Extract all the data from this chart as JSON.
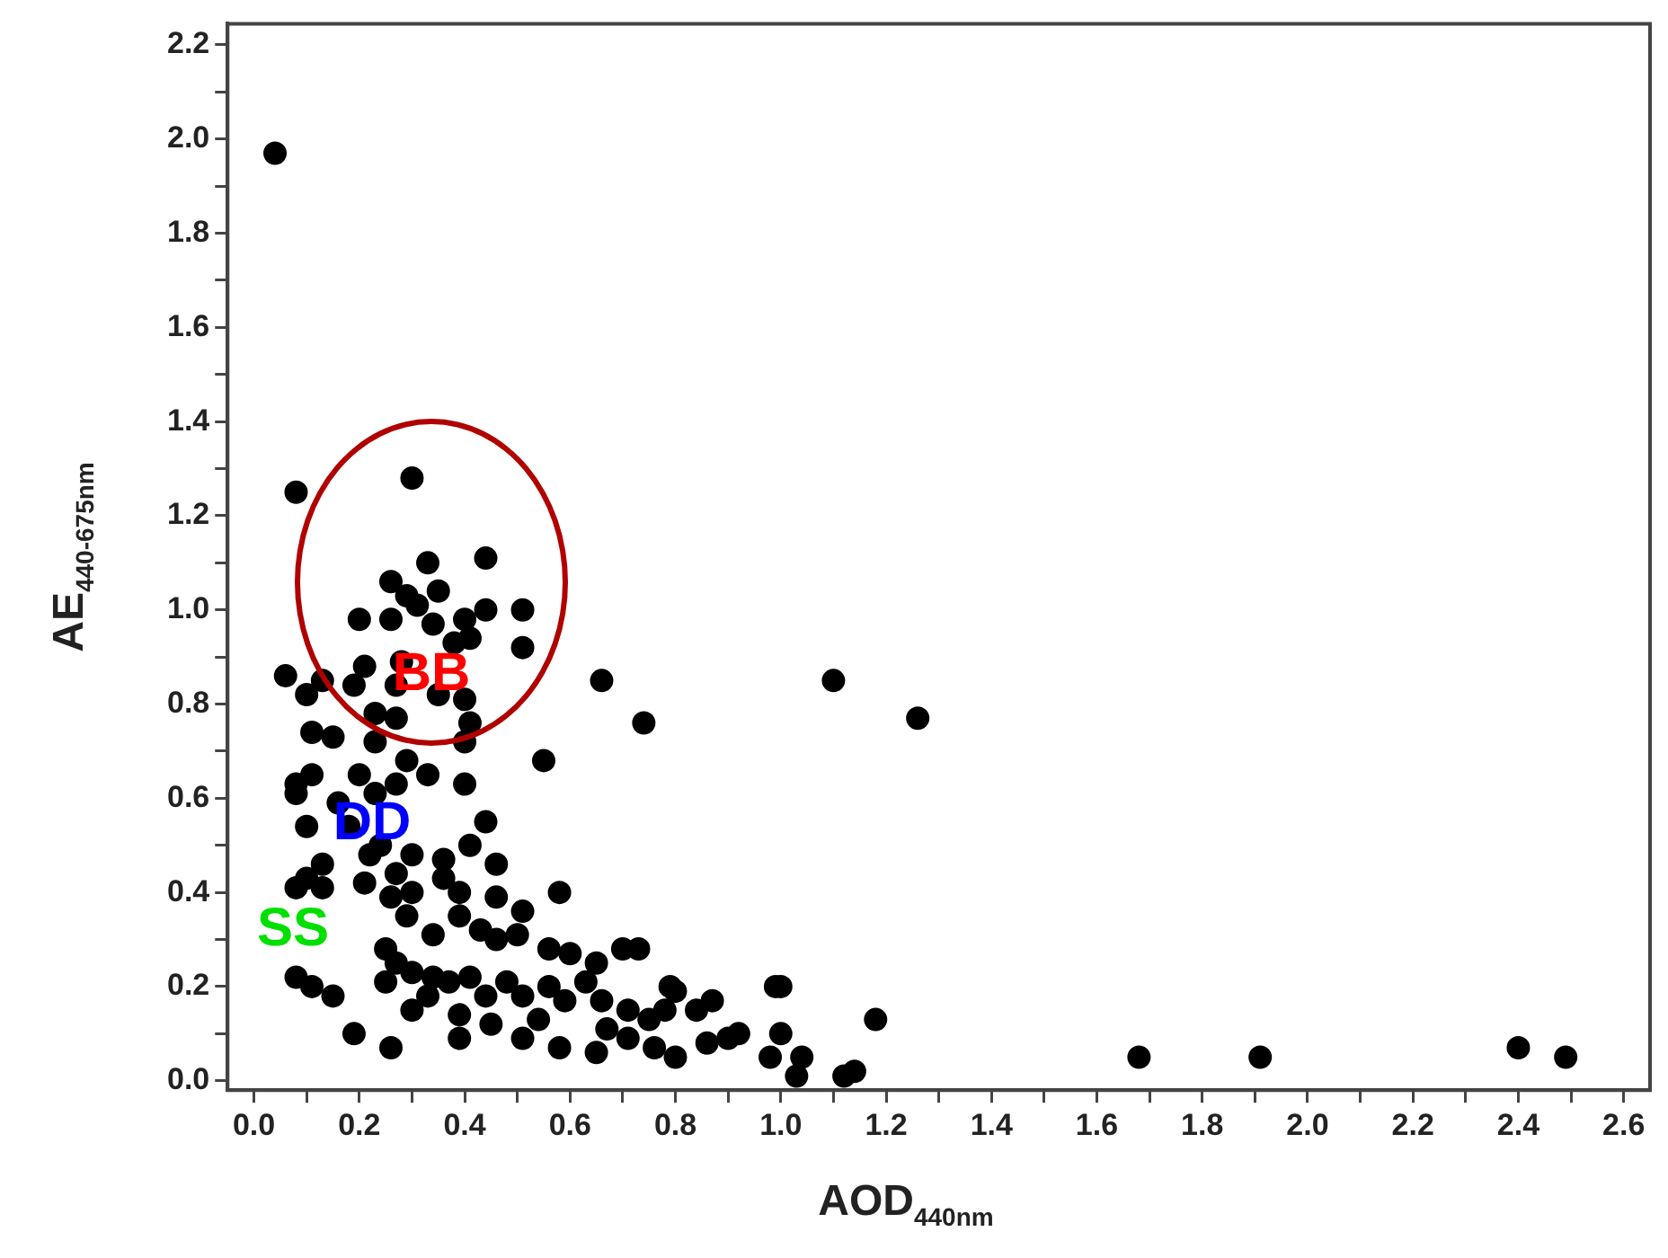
{
  "chart_data": {
    "type": "scatter",
    "xlabel": "AOD$_{440nm}$",
    "ylabel": "AE$_{440-675nm}$",
    "xlim": [
      -0.05,
      2.65
    ],
    "ylim": [
      -0.02,
      2.245
    ],
    "xticks": [
      {
        "value": 0,
        "label": "0.0"
      },
      {
        "value": 0.1,
        "label": null
      },
      {
        "value": 0.2,
        "label": "0.2"
      },
      {
        "value": 0.3,
        "label": null
      },
      {
        "value": 0.4,
        "label": "0.4"
      },
      {
        "value": 0.5,
        "label": null
      },
      {
        "value": 0.6,
        "label": "0.6"
      },
      {
        "value": 0.7,
        "label": null
      },
      {
        "value": 0.8,
        "label": "0.8"
      },
      {
        "value": 0.9,
        "label": null
      },
      {
        "value": 1,
        "label": "1.0"
      },
      {
        "value": 1.1,
        "label": null
      },
      {
        "value": 1.2,
        "label": "1.2"
      },
      {
        "value": 1.3,
        "label": null
      },
      {
        "value": 1.4,
        "label": "1.4"
      },
      {
        "value": 1.5,
        "label": null
      },
      {
        "value": 1.6,
        "label": "1.6"
      },
      {
        "value": 1.7,
        "label": null
      },
      {
        "value": 1.8,
        "label": "1.8"
      },
      {
        "value": 1.9,
        "label": null
      },
      {
        "value": 2,
        "label": "2.0"
      },
      {
        "value": 2.1,
        "label": null
      },
      {
        "value": 2.2,
        "label": "2.2"
      },
      {
        "value": 2.3,
        "label": null
      },
      {
        "value": 2.4,
        "label": "2.4"
      },
      {
        "value": 2.5,
        "label": null
      },
      {
        "value": 2.6,
        "label": "2.6"
      }
    ],
    "yticks": [
      {
        "value": 0,
        "label": "0.0"
      },
      {
        "value": 0.1,
        "label": null
      },
      {
        "value": 0.2,
        "label": "0.2"
      },
      {
        "value": 0.3,
        "label": null
      },
      {
        "value": 0.4,
        "label": "0.4"
      },
      {
        "value": 0.5,
        "label": null
      },
      {
        "value": 0.6,
        "label": "0.6"
      },
      {
        "value": 0.7,
        "label": null
      },
      {
        "value": 0.8,
        "label": "0.8"
      },
      {
        "value": 0.9,
        "label": null
      },
      {
        "value": 1,
        "label": "1.0"
      },
      {
        "value": 1.1,
        "label": null
      },
      {
        "value": 1.2,
        "label": "1.2"
      },
      {
        "value": 1.3,
        "label": null
      },
      {
        "value": 1.4,
        "label": "1.4"
      },
      {
        "value": 1.5,
        "label": null
      },
      {
        "value": 1.6,
        "label": "1.6"
      },
      {
        "value": 1.7,
        "label": null
      },
      {
        "value": 1.8,
        "label": "1.8"
      },
      {
        "value": 1.9,
        "label": null
      },
      {
        "value": 2,
        "label": "2.0"
      },
      {
        "value": 2.1,
        "label": null
      },
      {
        "value": 2.2,
        "label": "2.2"
      }
    ],
    "grid": false,
    "legend": false,
    "marker": "circle",
    "annotations": [
      "BB",
      "DD",
      "SS"
    ],
    "series": [
      {
        "color": "#000000",
        "x": [
          0.04,
          0.08,
          0.3,
          1.1,
          1.26,
          1.68,
          1.91,
          2.4,
          2.49,
          0.74,
          0.66,
          0.55,
          0.58,
          1.0,
          1.18,
          0.33,
          0.44,
          0.26,
          0.29,
          0.35,
          0.44,
          0.51,
          0.26,
          0.31,
          0.34,
          0.4,
          0.2,
          0.41,
          0.51,
          0.38,
          0.21,
          0.28,
          0.06,
          0.13,
          0.19,
          0.27,
          0.1,
          0.23,
          0.27,
          0.4,
          0.41,
          0.35,
          0.4,
          0.11,
          0.15,
          0.23,
          0.29,
          0.33,
          0.4,
          0.08,
          0.11,
          0.08,
          0.2,
          0.23,
          0.16,
          0.27,
          0.1,
          0.18,
          0.24,
          0.44,
          0.41,
          0.46,
          0.36,
          0.3,
          0.22,
          0.13,
          0.1,
          0.08,
          0.13,
          0.21,
          0.27,
          0.26,
          0.3,
          0.36,
          0.39,
          0.46,
          0.29,
          0.34,
          0.39,
          0.43,
          0.46,
          0.51,
          0.5,
          0.56,
          0.6,
          0.65,
          0.7,
          0.73,
          0.25,
          0.27,
          0.25,
          0.3,
          0.34,
          0.37,
          0.41,
          0.44,
          0.48,
          0.51,
          0.56,
          0.59,
          0.63,
          0.66,
          0.71,
          0.75,
          0.78,
          0.08,
          0.11,
          0.15,
          0.19,
          0.26,
          0.3,
          0.33,
          0.39,
          0.39,
          0.45,
          0.51,
          0.54,
          0.58,
          0.65,
          0.67,
          0.71,
          0.76,
          0.79,
          0.8,
          0.84,
          0.87,
          0.8,
          0.86,
          0.9,
          0.92,
          0.99,
          1.0,
          0.98,
          1.04,
          1.03,
          1.12,
          1.14
        ],
        "values": [
          1.97,
          1.25,
          1.28,
          0.85,
          0.77,
          0.05,
          0.05,
          0.07,
          0.05,
          0.76,
          0.85,
          0.68,
          0.4,
          0.2,
          0.13,
          1.1,
          1.11,
          1.06,
          1.03,
          1.04,
          1.0,
          1.0,
          0.98,
          1.01,
          0.97,
          0.98,
          0.98,
          0.94,
          0.92,
          0.93,
          0.88,
          0.89,
          0.86,
          0.85,
          0.84,
          0.84,
          0.82,
          0.78,
          0.77,
          0.81,
          0.76,
          0.82,
          0.72,
          0.74,
          0.73,
          0.72,
          0.68,
          0.65,
          0.63,
          0.63,
          0.65,
          0.61,
          0.65,
          0.61,
          0.59,
          0.63,
          0.54,
          0.54,
          0.5,
          0.55,
          0.5,
          0.46,
          0.47,
          0.48,
          0.48,
          0.46,
          0.43,
          0.41,
          0.41,
          0.42,
          0.44,
          0.39,
          0.4,
          0.43,
          0.4,
          0.39,
          0.35,
          0.31,
          0.35,
          0.32,
          0.3,
          0.36,
          0.31,
          0.28,
          0.27,
          0.25,
          0.28,
          0.28,
          0.28,
          0.25,
          0.21,
          0.23,
          0.22,
          0.21,
          0.22,
          0.18,
          0.21,
          0.18,
          0.2,
          0.17,
          0.21,
          0.17,
          0.15,
          0.13,
          0.15,
          0.22,
          0.2,
          0.18,
          0.1,
          0.07,
          0.15,
          0.18,
          0.14,
          0.09,
          0.12,
          0.09,
          0.13,
          0.07,
          0.06,
          0.11,
          0.09,
          0.07,
          0.2,
          0.19,
          0.15,
          0.17,
          0.05,
          0.08,
          0.09,
          0.1,
          0.2,
          0.1,
          0.05,
          0.05,
          0.01,
          0.01,
          0.02
        ]
      }
    ]
  }
}
